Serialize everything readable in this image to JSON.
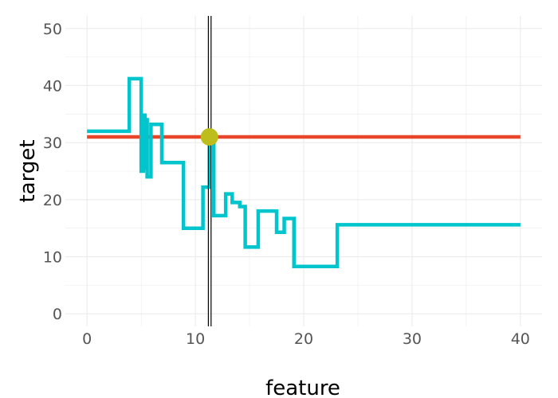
{
  "chart_data": {
    "type": "line",
    "title": "",
    "xlabel": "feature",
    "ylabel": "target",
    "xlim": [
      -2,
      42
    ],
    "ylim": [
      -2.2,
      52.2
    ],
    "x_ticks": [
      0,
      10,
      20,
      30,
      40
    ],
    "y_ticks": [
      0,
      10,
      20,
      30,
      40,
      50
    ],
    "grid": true,
    "legend": "none",
    "colors": {
      "step_series": "#00C5CD",
      "reference_line": "#E8462A",
      "marker": "#BDBD1D",
      "vertical_line": "#000000",
      "grid": "#EBEBEB"
    },
    "series": [
      {
        "type": "step",
        "points": [
          [
            0,
            32
          ],
          [
            3.9,
            32
          ],
          [
            3.9,
            41.2
          ],
          [
            5.0,
            41.2
          ],
          [
            5.0,
            25
          ],
          [
            5.2,
            25
          ],
          [
            5.2,
            34.8
          ],
          [
            5.35,
            34.8
          ],
          [
            5.35,
            25.5
          ],
          [
            5.45,
            25.5
          ],
          [
            5.45,
            34
          ],
          [
            5.55,
            34
          ],
          [
            5.55,
            24
          ],
          [
            5.9,
            24
          ],
          [
            5.9,
            33.2
          ],
          [
            6.9,
            33.2
          ],
          [
            6.9,
            26.5
          ],
          [
            8.9,
            26.5
          ],
          [
            8.9,
            15
          ],
          [
            10.7,
            15
          ],
          [
            10.7,
            22.2
          ],
          [
            11.3,
            22.2
          ],
          [
            11.3,
            31
          ],
          [
            11.7,
            31
          ],
          [
            11.7,
            17.2
          ],
          [
            12.8,
            17.2
          ],
          [
            12.8,
            21
          ],
          [
            13.4,
            21
          ],
          [
            13.4,
            19.5
          ],
          [
            14.1,
            19.5
          ],
          [
            14.1,
            18.8
          ],
          [
            14.6,
            18.8
          ],
          [
            14.6,
            11.7
          ],
          [
            15.8,
            11.7
          ],
          [
            15.8,
            18
          ],
          [
            17.5,
            18
          ],
          [
            17.5,
            14.3
          ],
          [
            18.2,
            14.3
          ],
          [
            18.2,
            16.7
          ],
          [
            19.1,
            16.7
          ],
          [
            19.1,
            8.3
          ],
          [
            23.1,
            8.3
          ],
          [
            23.1,
            15.6
          ],
          [
            40,
            15.6
          ]
        ]
      },
      {
        "type": "hline",
        "x": [
          0,
          40
        ],
        "y": 31
      }
    ],
    "vertical_lines": [
      11.2,
      11.45
    ],
    "highlight_point": {
      "x": 11.3,
      "y": 31
    }
  }
}
